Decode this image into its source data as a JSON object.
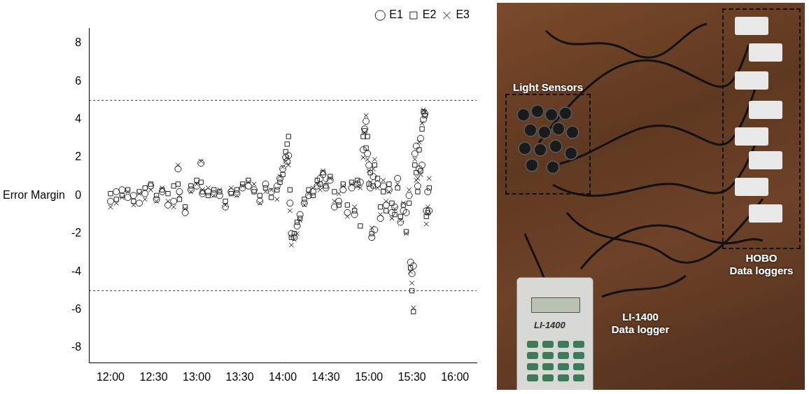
{
  "chart_data": {
    "type": "scatter",
    "y_label": "Error Margin",
    "x": [
      720,
      724,
      728,
      732,
      736,
      740,
      744,
      748,
      752,
      756,
      760,
      764,
      767,
      768,
      772,
      776,
      780,
      783,
      784,
      788,
      792,
      796,
      800,
      804,
      808,
      812,
      816,
      820,
      824,
      828,
      832,
      836,
      838,
      840,
      842,
      843,
      844,
      845,
      846,
      848,
      850,
      852,
      855,
      858,
      861,
      864,
      866,
      868,
      870,
      873,
      876,
      879,
      882,
      885,
      888,
      890,
      892,
      894,
      896,
      897,
      898,
      899,
      900,
      901,
      902,
      903,
      904,
      906,
      908,
      910,
      912,
      914,
      916,
      918,
      920,
      922,
      924,
      926,
      928,
      929,
      930,
      931,
      932,
      933,
      934,
      935,
      936,
      937,
      938,
      939,
      940,
      941,
      942
    ],
    "series": [
      {
        "name": "E1",
        "color": "#222222",
        "marker": "circle",
        "values": [
          -0.3,
          0.2,
          0.3,
          -0.1,
          0.0,
          -0.4,
          0.1,
          0.5,
          -0.2,
          0.2,
          -0.5,
          -0.3,
          1.4,
          0.2,
          -0.9,
          0.3,
          0.5,
          1.7,
          0.1,
          0.2,
          0.1,
          0.0,
          -0.6,
          0.2,
          0.1,
          0.4,
          0.5,
          0.3,
          -0.3,
          0.6,
          0.2,
          0.5,
          0.9,
          1.4,
          2.0,
          1.8,
          2.1,
          -0.4,
          -2.0,
          -2.2,
          -1.6,
          -1.0,
          -0.4,
          0.0,
          0.2,
          0.5,
          0.9,
          1.1,
          0.4,
          0.8,
          -0.6,
          -0.3,
          0.3,
          -0.9,
          0.4,
          -1.0,
          0.6,
          0.7,
          2.4,
          3.5,
          3.9,
          2.2,
          1.6,
          0.4,
          -2.2,
          1.0,
          -1.8,
          0.6,
          -1.2,
          0.5,
          -0.5,
          0.3,
          -0.9,
          -0.6,
          0.9,
          -1.4,
          -0.8,
          -0.9,
          0.0,
          -3.5,
          -4.1,
          -3.7,
          2.2,
          2.6,
          0.5,
          1.4,
          3.0,
          1.6,
          4.0,
          4.3,
          -0.8,
          0.2,
          -0.8
        ]
      },
      {
        "name": "E2",
        "color": "#222222",
        "marker": "square",
        "values": [
          0.1,
          -0.2,
          0.0,
          0.3,
          -0.3,
          0.2,
          0.4,
          0.6,
          0.0,
          0.3,
          0.1,
          0.5,
          0.6,
          -0.2,
          -0.6,
          0.5,
          0.8,
          0.7,
          0.2,
          0.0,
          0.3,
          0.2,
          -0.3,
          0.1,
          0.3,
          0.6,
          0.8,
          0.2,
          0.0,
          0.4,
          -0.1,
          0.3,
          0.7,
          1.1,
          2.3,
          2.7,
          3.1,
          0.3,
          -2.2,
          -2.0,
          -1.4,
          -1.2,
          -0.2,
          0.3,
          0.0,
          0.8,
          0.6,
          1.2,
          0.5,
          1.0,
          0.2,
          -0.5,
          0.6,
          -0.5,
          0.7,
          -0.8,
          0.8,
          -1.6,
          3.1,
          3.4,
          2.5,
          3.1,
          0.6,
          1.2,
          -2.0,
          0.5,
          1.6,
          0.9,
          -0.6,
          0.2,
          -0.8,
          0.6,
          -0.4,
          -1.0,
          0.4,
          -1.1,
          -0.5,
          -1.9,
          -0.4,
          -3.8,
          -5.0,
          -6.1,
          1.6,
          1.2,
          0.2,
          2.4,
          1.3,
          3.5,
          4.4,
          4.2,
          -1.1,
          -0.9,
          0.4
        ]
      },
      {
        "name": "E3",
        "color": "#222222",
        "marker": "x",
        "values": [
          -0.6,
          -0.4,
          -0.1,
          0.2,
          -0.5,
          0.1,
          -0.2,
          0.3,
          -0.3,
          0.4,
          -0.3,
          -0.6,
          1.6,
          0.0,
          -0.7,
          0.2,
          0.6,
          1.8,
          0.3,
          0.4,
          0.0,
          0.3,
          -0.5,
          0.4,
          0.0,
          0.5,
          0.7,
          0.6,
          -0.4,
          0.2,
          0.3,
          -0.2,
          1.0,
          1.5,
          1.8,
          2.0,
          1.6,
          -0.8,
          -2.6,
          -2.3,
          -2.0,
          -1.3,
          -0.5,
          0.1,
          0.4,
          0.6,
          0.3,
          1.3,
          0.7,
          0.9,
          -0.3,
          0.1,
          0.5,
          -1.1,
          0.6,
          -0.6,
          0.5,
          0.4,
          2.0,
          3.3,
          4.2,
          1.9,
          1.3,
          0.7,
          -1.7,
          1.4,
          1.9,
          0.4,
          -1.0,
          0.8,
          -0.3,
          0.2,
          -1.2,
          -0.7,
          0.6,
          -1.3,
          -0.4,
          -2.0,
          0.3,
          -4.0,
          -4.6,
          -5.9,
          1.9,
          0.8,
          0.9,
          2.8,
          1.1,
          3.8,
          4.5,
          4.4,
          -1.5,
          -0.6,
          0.9
        ]
      }
    ],
    "xlim": [
      705,
      975
    ],
    "xticks": [
      {
        "value": 720,
        "label": "12:00"
      },
      {
        "value": 750,
        "label": "12:30"
      },
      {
        "value": 780,
        "label": "13:00"
      },
      {
        "value": 810,
        "label": "13:30"
      },
      {
        "value": 840,
        "label": "14:00"
      },
      {
        "value": 870,
        "label": "14:30"
      },
      {
        "value": 900,
        "label": "15:00"
      },
      {
        "value": 930,
        "label": "15:30"
      },
      {
        "value": 960,
        "label": "16:00"
      }
    ],
    "ylim": [
      -8.8,
      8.8
    ],
    "yticks": [
      -8,
      -6,
      -4,
      -2,
      0,
      2,
      4,
      6,
      8
    ],
    "reference_lines": [
      5,
      -5
    ],
    "grid": false,
    "legend": "top-right"
  },
  "photo": {
    "labels": {
      "light_sensors": "Light Sensors",
      "hobo": "HOBO Data loggers",
      "li1400": "LI-1400 Data logger"
    },
    "device_screen": "LI-1400"
  }
}
